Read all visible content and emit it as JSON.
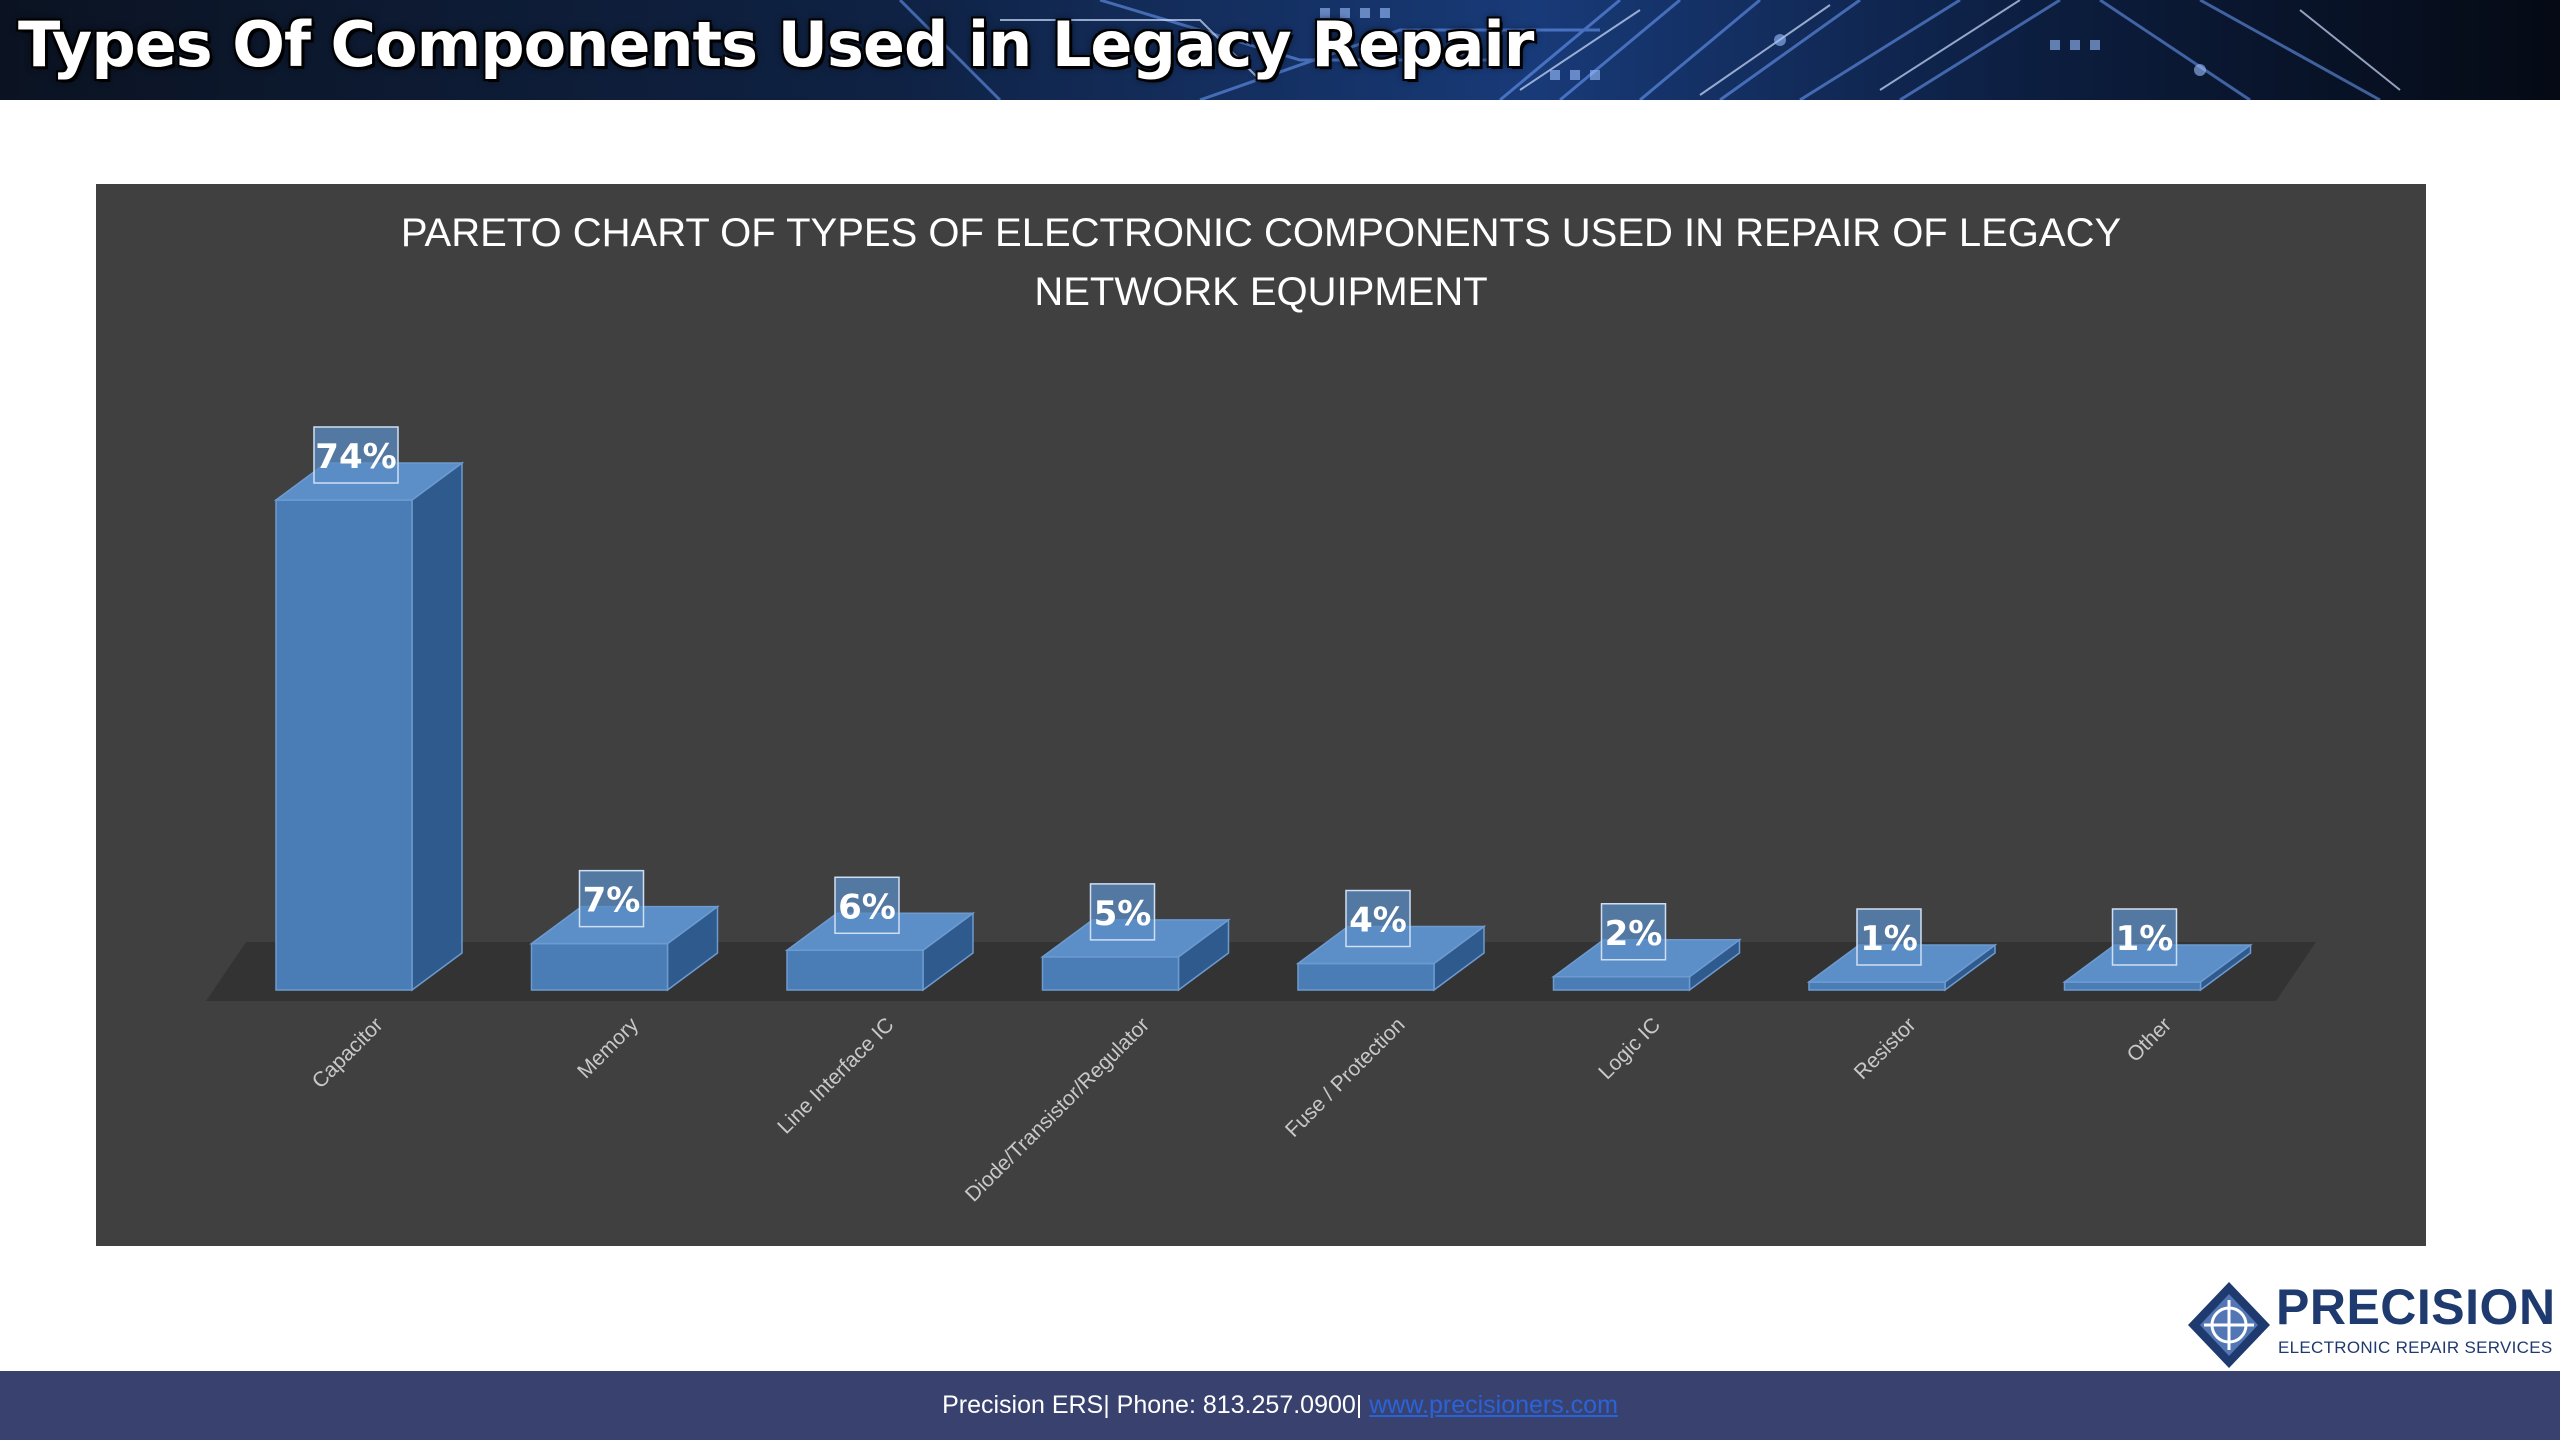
{
  "slide": {
    "title": "Types Of Components Used in Legacy Repair"
  },
  "chart_data": {
    "type": "bar",
    "title_lines": [
      "PARETO CHART OF TYPES OF ELECTRONIC COMPONENTS USED IN REPAIR OF LEGACY",
      "NETWORK EQUIPMENT"
    ],
    "categories": [
      "Capacitor",
      "Memory",
      "Line Interface IC",
      "Diode/Transistor/Regulator",
      "Fuse / Protection",
      "Logic IC",
      "Resistor",
      "Other"
    ],
    "values": [
      74,
      7,
      6,
      5,
      4,
      2,
      1,
      1
    ],
    "data_labels": [
      "74%",
      "7%",
      "6%",
      "5%",
      "4%",
      "2%",
      "1%",
      "1%"
    ],
    "unit": "%",
    "ylim": [
      0,
      74
    ],
    "grid": false,
    "legend": "none",
    "style": "3d-column",
    "colors": {
      "bar": "#4a7db6",
      "background": "#404040",
      "floor": "#333333"
    }
  },
  "footer": {
    "contact": "Precision ERS| Phone: 813.257.0900|",
    "link": "www.precisioners.com"
  },
  "logo": {
    "wordmark": "PRECISION",
    "tagline": "ELECTRONIC REPAIR SERVICES"
  }
}
